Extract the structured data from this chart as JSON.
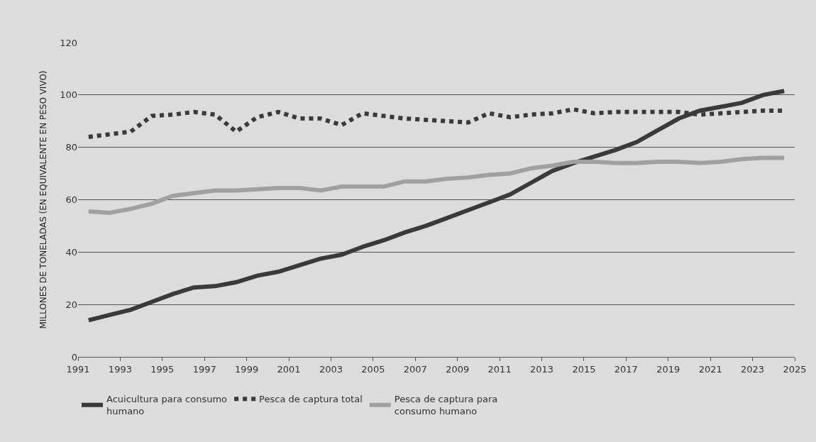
{
  "chart_data": {
    "type": "line",
    "ylabel": "MILLONES DE TONELADAS (EN EQUIVALENTE EN PESO VIVO)",
    "x": [
      1991.5,
      1992.5,
      1993.5,
      1994.5,
      1995.5,
      1996.5,
      1997.5,
      1998.5,
      1999.5,
      2000.5,
      2001.5,
      2002.5,
      2003.5,
      2004.5,
      2005.5,
      2006.5,
      2007.5,
      2008.5,
      2009.5,
      2010.5,
      2011.5,
      2012.5,
      2013.5,
      2014.5,
      2015.5,
      2016.5,
      2017.5,
      2018.5,
      2019.5,
      2020.5,
      2021.5,
      2022.5,
      2023.5,
      2024.5
    ],
    "series": [
      {
        "name": "Acuicultura para consumo humano",
        "color": "#3a3a3a",
        "line_style": "solid",
        "values": [
          14,
          16,
          18,
          21,
          24,
          26.5,
          27,
          28.5,
          31,
          32.5,
          35,
          37.5,
          39,
          42,
          44.5,
          47.5,
          50,
          53,
          56,
          59,
          62,
          66.5,
          71,
          74,
          76.5,
          79,
          82,
          86.5,
          91,
          94,
          95.5,
          97,
          100,
          101.5
        ]
      },
      {
        "name": "Pesca de captura total",
        "color": "#3a3a3a",
        "line_style": "dotted",
        "values": [
          84,
          85,
          86,
          92,
          92.5,
          93.5,
          92.5,
          86,
          91.5,
          93.5,
          91,
          91,
          88.5,
          93,
          92,
          91,
          90.5,
          90,
          89.5,
          93,
          91.5,
          92.5,
          93,
          94.5,
          93,
          93.5,
          93.5,
          93.5,
          93.5,
          92.5,
          93,
          93.5,
          94,
          94
        ]
      },
      {
        "name": "Pesca de captura para consumo humano",
        "color": "#a0a0a0",
        "line_style": "solid",
        "values": [
          55.5,
          55,
          56.5,
          58.5,
          61.5,
          62.5,
          63.5,
          63.5,
          64,
          64.5,
          64.5,
          63.5,
          65,
          65,
          65,
          67,
          67,
          68,
          68.5,
          69.5,
          70,
          72,
          73,
          74.5,
          74.5,
          74,
          74,
          74.5,
          74.5,
          74,
          74.5,
          75.5,
          76,
          76
        ]
      }
    ],
    "xlim": [
      1991,
      2025
    ],
    "xticks": [
      1991,
      1993,
      1995,
      1997,
      1999,
      2001,
      2003,
      2005,
      2007,
      2009,
      2011,
      2013,
      2015,
      2017,
      2019,
      2021,
      2023,
      2025
    ],
    "ylim": [
      0,
      120
    ],
    "yticks": [
      0,
      20,
      40,
      60,
      80,
      100,
      120
    ],
    "grid": "y",
    "legend": "bottom",
    "marker": "none"
  }
}
